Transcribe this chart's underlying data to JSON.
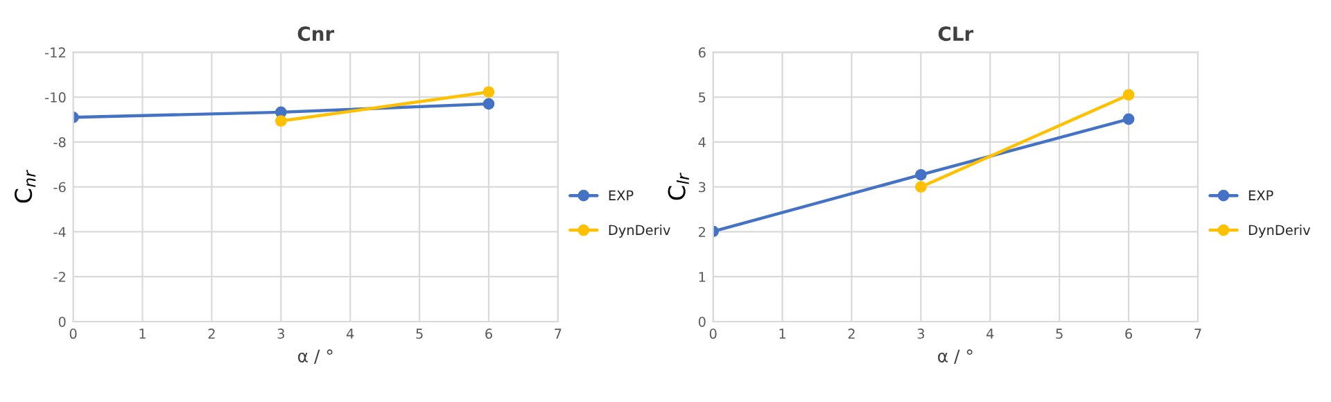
{
  "chart_data": [
    {
      "type": "line",
      "title": "Cnr",
      "xlabel": "α / °",
      "ylabel": "C$_{nr}$",
      "xlim": [
        0,
        7
      ],
      "xticks": [
        0,
        1,
        2,
        3,
        4,
        5,
        6,
        7
      ],
      "ylim": [
        0,
        -12
      ],
      "yticks": [
        0,
        -2,
        -4,
        -6,
        -8,
        -10,
        -12
      ],
      "grid": true,
      "legend": "right",
      "marker": "circle",
      "line_style": "solid",
      "series": [
        {
          "name": "EXP",
          "color": "#4472c4",
          "x": [
            0,
            3,
            6
          ],
          "values": [
            -9.1,
            -9.33,
            -9.7
          ]
        },
        {
          "name": "DynDeriv",
          "color": "#ffc000",
          "x": [
            3,
            6
          ],
          "values": [
            -8.94,
            -10.23
          ]
        }
      ]
    },
    {
      "type": "line",
      "title": "CLr",
      "xlabel": "α / °",
      "ylabel": "C$_{lr}$",
      "xlim": [
        0,
        7
      ],
      "xticks": [
        0,
        1,
        2,
        3,
        4,
        5,
        6,
        7
      ],
      "ylim": [
        0,
        6
      ],
      "yticks": [
        0,
        1,
        2,
        3,
        4,
        5,
        6
      ],
      "grid": true,
      "legend": "right",
      "marker": "circle",
      "line_style": "solid",
      "series": [
        {
          "name": "EXP",
          "color": "#4472c4",
          "x": [
            0,
            3,
            6
          ],
          "values": [
            2.01,
            3.27,
            4.51
          ]
        },
        {
          "name": "DynDeriv",
          "color": "#ffc000",
          "x": [
            3,
            6
          ],
          "values": [
            3.0,
            5.05
          ]
        }
      ]
    }
  ]
}
